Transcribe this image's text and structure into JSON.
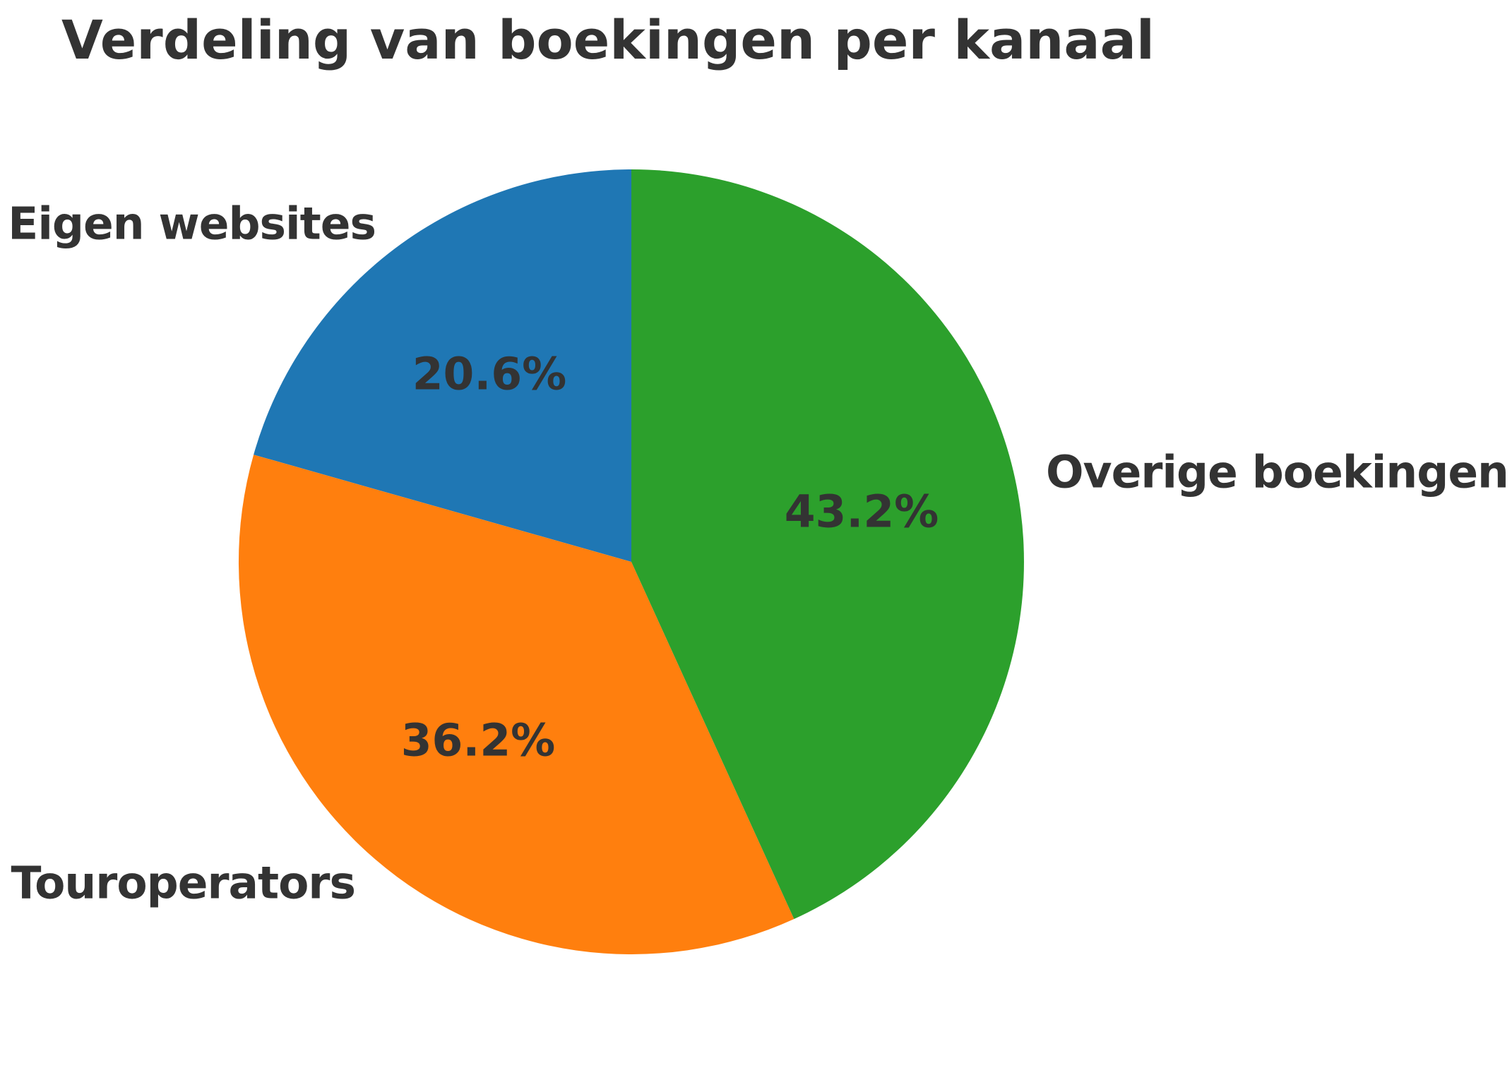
{
  "figure": {
    "background": "#ffffff",
    "text_color": "#333333"
  },
  "chart_data": {
    "type": "pie",
    "title": "Verdeling van boekingen per kanaal",
    "labels": [
      "Eigen websites",
      "Touroperators",
      "Overige boekingen"
    ],
    "values": [
      20.6,
      36.2,
      43.2
    ],
    "pct_labels": [
      "20.6%",
      "36.2%",
      "43.2%"
    ],
    "colors": [
      "#1f77b4",
      "#ff7f0e",
      "#2ca02c"
    ],
    "start_angle": 90,
    "direction": "counterclockwise",
    "label_distance": 1.08,
    "pct_distance": 0.6,
    "legend": "none",
    "grid": false,
    "background": "#ffffff"
  }
}
